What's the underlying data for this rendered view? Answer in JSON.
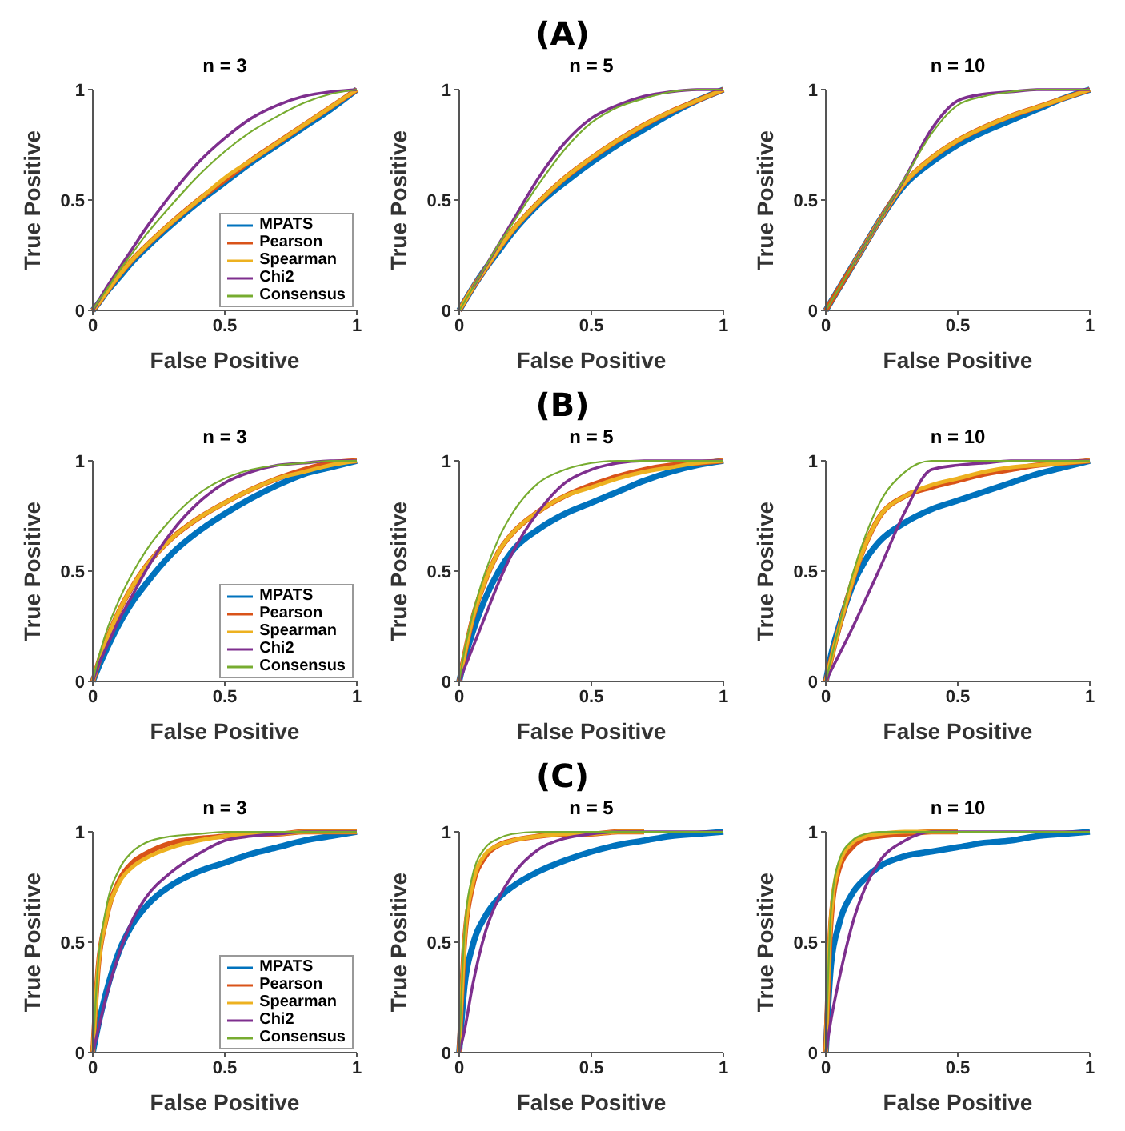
{
  "chart_data": [
    {
      "type": "line",
      "title": "n = 3",
      "xlabel": "False Positive",
      "ylabel": "True Positive",
      "x": [
        0,
        0.02,
        0.05,
        0.1,
        0.15,
        0.2,
        0.3,
        0.4,
        0.5,
        0.6,
        0.7,
        0.8,
        0.9,
        1
      ],
      "xlim": [
        0,
        1
      ],
      "ylim": [
        0,
        1
      ],
      "xticks": [
        0,
        0.5,
        1
      ],
      "yticks": [
        0,
        0.5,
        1
      ],
      "legend": "bottom right",
      "series": [
        {
          "name": "MPATS",
          "color": "#0072bd",
          "values": [
            0,
            0.03,
            0.08,
            0.15,
            0.22,
            0.28,
            0.39,
            0.49,
            0.58,
            0.67,
            0.75,
            0.83,
            0.91,
            1
          ]
        },
        {
          "name": "Pearson",
          "color": "#d95319",
          "values": [
            0,
            0.03,
            0.08,
            0.16,
            0.23,
            0.29,
            0.4,
            0.5,
            0.59,
            0.68,
            0.76,
            0.84,
            0.92,
            1
          ]
        },
        {
          "name": "Spearman",
          "color": "#edb120",
          "values": [
            0,
            0.03,
            0.08,
            0.16,
            0.23,
            0.29,
            0.4,
            0.5,
            0.6,
            0.68,
            0.76,
            0.84,
            0.92,
            1
          ]
        },
        {
          "name": "Chi2",
          "color": "#7e2f8e",
          "values": [
            0,
            0.04,
            0.1,
            0.19,
            0.28,
            0.37,
            0.53,
            0.67,
            0.78,
            0.87,
            0.93,
            0.97,
            0.99,
            1
          ]
        },
        {
          "name": "Consensus",
          "color": "#77ac30",
          "values": [
            0,
            0.04,
            0.09,
            0.18,
            0.26,
            0.34,
            0.48,
            0.61,
            0.72,
            0.81,
            0.88,
            0.94,
            0.98,
            1
          ]
        }
      ]
    },
    {
      "type": "line",
      "title": "n = 5",
      "annotations": [
        "(A)"
      ],
      "xlabel": "False Positive",
      "ylabel": "True Positive",
      "x": [
        0,
        0.02,
        0.05,
        0.1,
        0.15,
        0.2,
        0.3,
        0.4,
        0.5,
        0.6,
        0.7,
        0.8,
        0.9,
        1
      ],
      "xlim": [
        0,
        1
      ],
      "ylim": [
        0,
        1
      ],
      "xticks": [
        0,
        0.5,
        1
      ],
      "yticks": [
        0,
        0.5,
        1
      ],
      "series": [
        {
          "color": "#0072bd",
          "values": [
            0,
            0.04,
            0.1,
            0.19,
            0.27,
            0.35,
            0.48,
            0.58,
            0.67,
            0.75,
            0.82,
            0.89,
            0.95,
            1
          ]
        },
        {
          "color": "#d95319",
          "values": [
            0,
            0.04,
            0.1,
            0.19,
            0.28,
            0.36,
            0.49,
            0.6,
            0.69,
            0.77,
            0.84,
            0.9,
            0.95,
            1
          ]
        },
        {
          "color": "#edb120",
          "values": [
            0,
            0.04,
            0.1,
            0.19,
            0.28,
            0.36,
            0.49,
            0.6,
            0.69,
            0.77,
            0.84,
            0.9,
            0.95,
            1
          ]
        },
        {
          "color": "#7e2f8e",
          "values": [
            null,
            null,
            0.1,
            0.2,
            0.3,
            0.4,
            0.6,
            0.76,
            0.87,
            0.93,
            0.97,
            0.99,
            1,
            1
          ]
        },
        {
          "color": "#77ac30",
          "values": [
            0,
            0.04,
            0.1,
            0.2,
            0.3,
            0.39,
            0.57,
            0.73,
            0.85,
            0.92,
            0.96,
            0.99,
            1,
            1
          ]
        }
      ]
    },
    {
      "type": "line",
      "title": "n = 10",
      "xlabel": "False Positive",
      "ylabel": "True Positive",
      "x": [
        0,
        0.02,
        0.05,
        0.1,
        0.15,
        0.2,
        0.3,
        0.4,
        0.5,
        0.6,
        0.7,
        0.8,
        0.9,
        1
      ],
      "xlim": [
        0,
        1
      ],
      "ylim": [
        0,
        1
      ],
      "xticks": [
        0,
        0.5,
        1
      ],
      "yticks": [
        0,
        0.5,
        1
      ],
      "series": [
        {
          "color": "#0072bd",
          "values": [
            0,
            0.04,
            0.1,
            0.2,
            0.3,
            0.4,
            0.57,
            0.67,
            0.75,
            0.81,
            0.86,
            0.91,
            0.96,
            1
          ]
        },
        {
          "color": "#d95319",
          "values": [
            0,
            0.04,
            0.1,
            0.2,
            0.3,
            0.4,
            0.58,
            0.69,
            0.77,
            0.83,
            0.88,
            0.92,
            0.96,
            1
          ]
        },
        {
          "color": "#edb120",
          "values": [
            null,
            null,
            null,
            0.2,
            0.3,
            0.4,
            0.58,
            0.69,
            0.77,
            0.83,
            0.88,
            0.92,
            0.96,
            1
          ]
        },
        {
          "color": "#7e2f8e",
          "values": [
            null,
            null,
            null,
            0.2,
            0.3,
            0.4,
            0.6,
            0.82,
            0.95,
            0.98,
            0.99,
            1,
            1,
            1
          ]
        },
        {
          "color": "#77ac30",
          "values": [
            0,
            0.04,
            0.1,
            0.2,
            0.3,
            0.4,
            0.6,
            0.8,
            0.93,
            0.97,
            0.99,
            1,
            1,
            1
          ]
        }
      ]
    },
    {
      "type": "line",
      "title": "n = 3",
      "xlabel": "False Positive",
      "ylabel": "True Positive",
      "x": [
        0,
        0.02,
        0.05,
        0.1,
        0.15,
        0.2,
        0.3,
        0.4,
        0.5,
        0.6,
        0.7,
        0.8,
        0.9,
        1
      ],
      "xlim": [
        0,
        1
      ],
      "ylim": [
        0,
        1
      ],
      "xticks": [
        0,
        0.5,
        1
      ],
      "yticks": [
        0,
        0.5,
        1
      ],
      "legend": "bottom right",
      "series": [
        {
          "name": "MPATS",
          "color": "#0072bd",
          "values": [
            0,
            0.06,
            0.14,
            0.26,
            0.36,
            0.44,
            0.58,
            0.68,
            0.76,
            0.83,
            0.89,
            0.94,
            0.97,
            1
          ]
        },
        {
          "name": "Pearson",
          "color": "#d95319",
          "values": [
            0,
            0.08,
            0.18,
            0.32,
            0.43,
            0.52,
            0.65,
            0.74,
            0.81,
            0.87,
            0.92,
            0.96,
            0.99,
            1
          ]
        },
        {
          "name": "Spearman",
          "color": "#edb120",
          "values": [
            0,
            0.08,
            0.18,
            0.32,
            0.43,
            0.52,
            0.65,
            0.74,
            0.81,
            0.87,
            0.92,
            0.95,
            0.98,
            1
          ]
        },
        {
          "name": "Chi2",
          "color": "#7e2f8e",
          "values": [
            0,
            0.07,
            0.15,
            0.28,
            0.39,
            0.5,
            0.68,
            0.81,
            0.9,
            0.95,
            0.98,
            0.99,
            1,
            1
          ]
        },
        {
          "name": "Consensus",
          "color": "#77ac30",
          "values": [
            0,
            0.1,
            0.22,
            0.37,
            0.49,
            0.59,
            0.74,
            0.85,
            0.92,
            0.96,
            0.98,
            0.99,
            1,
            1
          ]
        }
      ]
    },
    {
      "type": "line",
      "title": "n = 5",
      "annotations": [
        "(B)"
      ],
      "xlabel": "False Positive",
      "ylabel": "True Positive",
      "x": [
        0,
        0.02,
        0.05,
        0.1,
        0.15,
        0.2,
        0.3,
        0.4,
        0.5,
        0.6,
        0.7,
        0.8,
        0.9,
        1
      ],
      "xlim": [
        0,
        1
      ],
      "ylim": [
        0,
        1
      ],
      "xticks": [
        0,
        0.5,
        1
      ],
      "yticks": [
        0,
        0.5,
        1
      ],
      "series": [
        {
          "color": "#0072bd",
          "values": [
            0,
            0.1,
            0.22,
            0.38,
            0.5,
            0.59,
            0.69,
            0.76,
            0.81,
            0.86,
            0.91,
            0.95,
            0.98,
            1
          ]
        },
        {
          "color": "#d95319",
          "values": [
            0,
            0.12,
            0.28,
            0.46,
            0.59,
            0.67,
            0.77,
            0.84,
            0.89,
            0.93,
            0.96,
            0.98,
            0.99,
            1
          ]
        },
        {
          "color": "#edb120",
          "values": [
            0,
            0.12,
            0.28,
            0.46,
            0.59,
            0.67,
            0.77,
            0.84,
            0.88,
            0.92,
            0.95,
            0.97,
            0.99,
            1
          ]
        },
        {
          "color": "#7e2f8e",
          "values": [
            0,
            0.06,
            0.15,
            0.3,
            0.45,
            0.58,
            0.77,
            0.9,
            0.96,
            0.99,
            1,
            1,
            1,
            1
          ]
        },
        {
          "color": "#77ac30",
          "values": [
            0,
            0.14,
            0.3,
            0.5,
            0.65,
            0.76,
            0.9,
            0.96,
            0.99,
            1,
            1,
            1,
            1,
            1
          ]
        }
      ]
    },
    {
      "type": "line",
      "title": "n = 10",
      "xlabel": "False Positive",
      "ylabel": "True Positive",
      "x": [
        0,
        0.02,
        0.05,
        0.1,
        0.15,
        0.2,
        0.3,
        0.4,
        0.5,
        0.6,
        0.7,
        0.8,
        0.9,
        1
      ],
      "xlim": [
        0,
        1
      ],
      "ylim": [
        0,
        1
      ],
      "xticks": [
        0,
        0.5,
        1
      ],
      "yticks": [
        0,
        0.5,
        1
      ],
      "series": [
        {
          "color": "#0072bd",
          "values": [
            0,
            0.12,
            0.25,
            0.43,
            0.55,
            0.63,
            0.72,
            0.78,
            0.82,
            0.86,
            0.9,
            0.94,
            0.97,
            1
          ]
        },
        {
          "color": "#d95319",
          "values": [
            0,
            0.1,
            0.24,
            0.45,
            0.62,
            0.74,
            0.84,
            0.88,
            0.91,
            0.94,
            0.96,
            0.98,
            0.99,
            1
          ]
        },
        {
          "color": "#edb120",
          "values": [
            0,
            0.1,
            0.24,
            0.45,
            0.62,
            0.74,
            0.84,
            0.89,
            0.92,
            0.95,
            0.97,
            0.98,
            0.99,
            1
          ]
        },
        {
          "color": "#7e2f8e",
          "values": [
            0,
            0.05,
            0.12,
            0.24,
            0.37,
            0.5,
            0.77,
            0.96,
            0.98,
            0.99,
            1,
            1,
            1,
            1
          ]
        },
        {
          "color": "#77ac30",
          "values": [
            0,
            0.1,
            0.25,
            0.48,
            0.66,
            0.8,
            0.95,
            1,
            1,
            1,
            1,
            1,
            1,
            1
          ]
        }
      ]
    },
    {
      "type": "line",
      "title": "n = 3",
      "xlabel": "False Positive",
      "ylabel": "True Positive",
      "x": [
        0,
        0.02,
        0.05,
        0.1,
        0.15,
        0.2,
        0.3,
        0.4,
        0.5,
        0.6,
        0.7,
        0.8,
        0.9,
        1
      ],
      "xlim": [
        0,
        1
      ],
      "ylim": [
        0,
        1
      ],
      "xticks": [
        0,
        0.5,
        1
      ],
      "yticks": [
        0,
        0.5,
        1
      ],
      "legend": "bottom right",
      "series": [
        {
          "name": "MPATS",
          "color": "#0072bd",
          "values": [
            0,
            0.12,
            0.27,
            0.46,
            0.58,
            0.66,
            0.76,
            0.82,
            0.86,
            0.9,
            0.93,
            0.96,
            0.98,
            1
          ]
        },
        {
          "name": "Pearson",
          "color": "#d95319",
          "values": [
            0,
            0.38,
            0.6,
            0.78,
            0.86,
            0.9,
            0.95,
            0.97,
            0.98,
            0.99,
            0.99,
            1,
            1,
            1
          ]
        },
        {
          "name": "Spearman",
          "color": "#edb120",
          "values": [
            0,
            0.38,
            0.6,
            0.77,
            0.84,
            0.88,
            0.93,
            0.96,
            0.98,
            0.99,
            0.99,
            1,
            1,
            1
          ]
        },
        {
          "name": "Chi2",
          "color": "#7e2f8e",
          "values": [
            0,
            0.1,
            0.25,
            0.45,
            0.6,
            0.7,
            0.82,
            0.9,
            0.96,
            0.98,
            0.99,
            1,
            1,
            1
          ]
        },
        {
          "name": "Consensus",
          "color": "#77ac30",
          "values": [
            0,
            0.4,
            0.65,
            0.83,
            0.91,
            0.95,
            0.98,
            0.99,
            1,
            1,
            1,
            1,
            1,
            1
          ]
        }
      ]
    },
    {
      "type": "line",
      "title": "n = 5",
      "annotations": [
        "(C)"
      ],
      "xlabel": "False Positive",
      "ylabel": "True Positive",
      "x": [
        0,
        0.02,
        0.05,
        0.1,
        0.15,
        0.2,
        0.3,
        0.4,
        0.5,
        0.6,
        0.7,
        0.8,
        0.9,
        1
      ],
      "xlim": [
        0,
        1
      ],
      "ylim": [
        0,
        1
      ],
      "xticks": [
        0,
        0.5,
        1
      ],
      "yticks": [
        0,
        0.5,
        1
      ],
      "series": [
        {
          "color": "#0072bd",
          "values": [
            0,
            0.3,
            0.48,
            0.62,
            0.7,
            0.75,
            0.82,
            0.87,
            0.91,
            0.94,
            0.96,
            0.98,
            0.99,
            1
          ]
        },
        {
          "color": "#d95319",
          "values": [
            0,
            0.5,
            0.75,
            0.89,
            0.94,
            0.96,
            0.98,
            0.99,
            0.99,
            1,
            1,
            null,
            null,
            null
          ]
        },
        {
          "color": "#edb120",
          "values": [
            0,
            0.5,
            0.76,
            0.9,
            0.94,
            0.96,
            0.98,
            0.99,
            0.99,
            1,
            1,
            null,
            null,
            null
          ]
        },
        {
          "color": "#7e2f8e",
          "values": [
            0,
            0.1,
            0.3,
            0.55,
            0.7,
            0.8,
            0.92,
            0.97,
            0.99,
            1,
            1,
            1,
            1,
            1
          ]
        },
        {
          "color": "#77ac30",
          "values": [
            0,
            0.55,
            0.8,
            0.93,
            0.97,
            0.99,
            1,
            1,
            1,
            1,
            1,
            1,
            1,
            1
          ]
        }
      ]
    },
    {
      "type": "line",
      "title": "n = 10",
      "xlabel": "False Positive",
      "ylabel": "True Positive",
      "x": [
        0,
        0.02,
        0.05,
        0.1,
        0.15,
        0.2,
        0.3,
        0.4,
        0.5,
        0.6,
        0.7,
        0.8,
        0.9,
        1
      ],
      "xlim": [
        0,
        1
      ],
      "ylim": [
        0,
        1
      ],
      "xticks": [
        0,
        0.5,
        1
      ],
      "yticks": [
        0,
        0.5,
        1
      ],
      "series": [
        {
          "color": "#0072bd",
          "values": [
            0,
            0.4,
            0.58,
            0.72,
            0.79,
            0.84,
            0.89,
            0.91,
            0.93,
            0.95,
            0.96,
            0.98,
            0.99,
            1
          ]
        },
        {
          "color": "#d95319",
          "values": [
            0,
            0.6,
            0.83,
            0.93,
            0.97,
            0.98,
            0.99,
            1,
            1,
            null,
            null,
            null,
            null,
            null
          ]
        },
        {
          "color": "#edb120",
          "values": [
            0,
            0.62,
            0.85,
            0.95,
            0.98,
            0.99,
            1,
            1,
            1,
            null,
            null,
            null,
            null,
            null
          ]
        },
        {
          "color": "#7e2f8e",
          "values": [
            0,
            0.15,
            0.33,
            0.58,
            0.75,
            0.86,
            0.96,
            1,
            1,
            1,
            1,
            1,
            1,
            1
          ]
        },
        {
          "color": "#77ac30",
          "values": [
            0,
            0.65,
            0.87,
            0.96,
            0.99,
            1,
            1,
            1,
            1,
            1,
            1,
            1,
            1,
            1
          ]
        }
      ]
    }
  ]
}
